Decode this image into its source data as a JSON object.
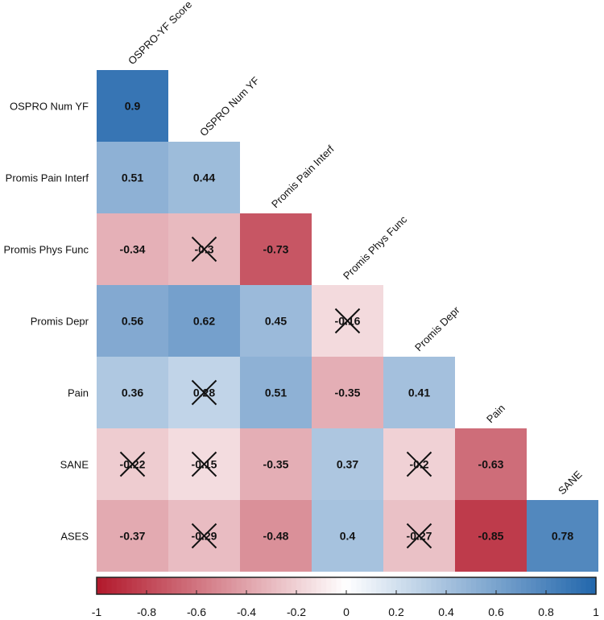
{
  "chart_data": {
    "type": "heatmap",
    "title": "",
    "variables": [
      "OSPRO-YF Score",
      "OSPRO Num YF",
      "Promis Pain Interf",
      "Promis Phys Func",
      "Promis Depr",
      "Pain",
      "SANE",
      "ASES"
    ],
    "row_labels": [
      "OSPRO Num YF",
      "Promis Pain Interf",
      "Promis Phys Func",
      "Promis Depr",
      "Pain",
      "SANE",
      "ASES"
    ],
    "col_labels": [
      "OSPRO-YF Score",
      "OSPRO Num YF",
      "Promis Pain Interf",
      "Promis Phys Func",
      "Promis Depr",
      "Pain",
      "SANE"
    ],
    "matrix": [
      [
        0.9
      ],
      [
        0.51,
        0.44
      ],
      [
        -0.34,
        -0.3,
        -0.73
      ],
      [
        0.56,
        0.62,
        0.45,
        -0.16
      ],
      [
        0.36,
        0.28,
        0.51,
        -0.35,
        0.41
      ],
      [
        -0.22,
        -0.15,
        -0.35,
        0.37,
        -0.2,
        -0.63
      ],
      [
        -0.37,
        -0.29,
        -0.48,
        0.4,
        -0.27,
        -0.85,
        0.78
      ]
    ],
    "value_text": [
      [
        "0.9"
      ],
      [
        "0.51",
        "0.44"
      ],
      [
        "-0.34",
        "-0.3",
        "-0.73"
      ],
      [
        "0.56",
        "0.62",
        "0.45",
        "-0.16"
      ],
      [
        "0.36",
        "0.28",
        "0.51",
        "-0.35",
        "0.41"
      ],
      [
        "-0.22",
        "-0.15",
        "-0.35",
        "0.37",
        "-0.2",
        "-0.63"
      ],
      [
        "-0.37",
        "-0.29",
        "-0.48",
        "0.4",
        "-0.27",
        "-0.85",
        "0.78"
      ]
    ],
    "crossed_out": [
      [
        false
      ],
      [
        false,
        false
      ],
      [
        false,
        true,
        false
      ],
      [
        false,
        false,
        false,
        true
      ],
      [
        false,
        true,
        false,
        false,
        false
      ],
      [
        true,
        true,
        false,
        false,
        true,
        false
      ],
      [
        false,
        true,
        false,
        false,
        true,
        false,
        false
      ]
    ],
    "colorbar": {
      "range": [
        -1,
        1
      ],
      "ticks": [
        -1,
        -0.8,
        -0.6,
        -0.4,
        -0.2,
        0,
        0.2,
        0.4,
        0.6,
        0.8,
        1
      ],
      "tick_labels": [
        "-1",
        "-0.8",
        "-0.6",
        "-0.4",
        "-0.2",
        "0",
        "0.2",
        "0.4",
        "0.6",
        "0.8",
        "1"
      ],
      "low_color": "#b2182b",
      "mid_color": "#ffffff",
      "high_color": "#2166ac",
      "position": "bottom"
    }
  }
}
